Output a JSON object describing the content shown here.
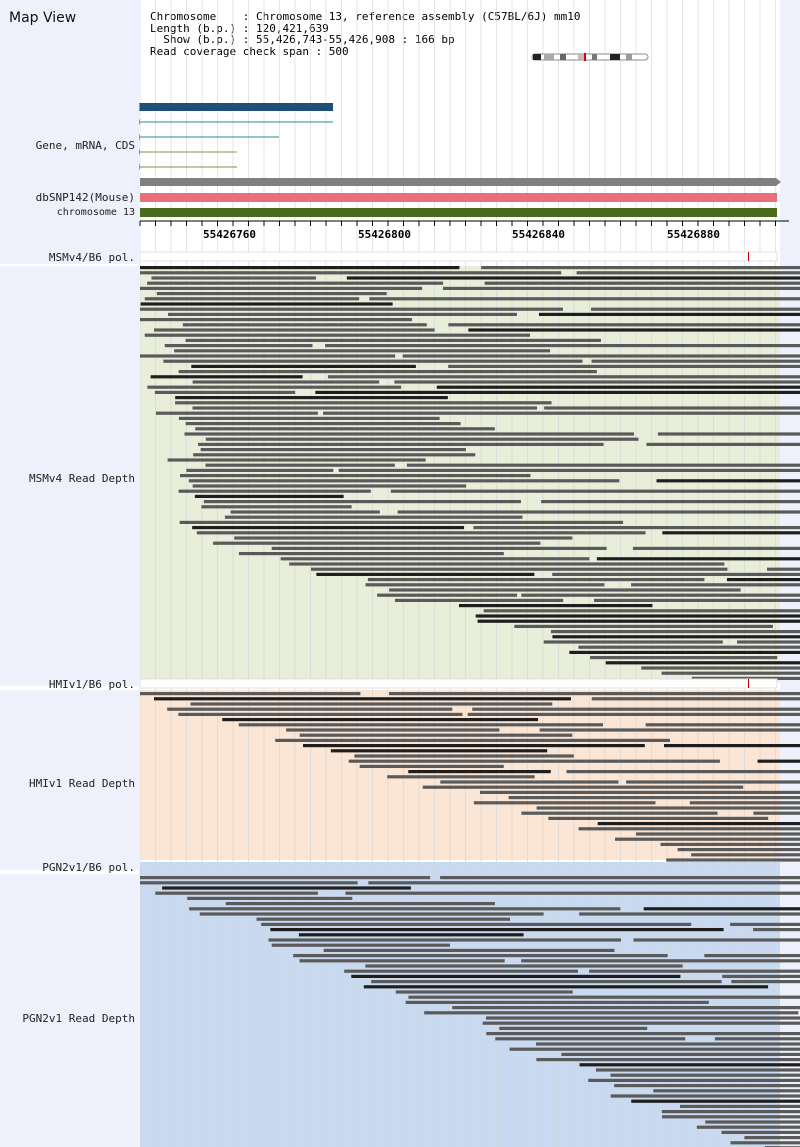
{
  "map_view": {
    "title": "Map View",
    "info": {
      "chromosome": "Chromosome    : Chromosome 13, reference assembly (C57BL/6J) mm10",
      "length": "Length (b.p.) : 120,421,639",
      "show": "  Show (b.p.) : 55,426,743-55,426,908 : 166 bp",
      "span": "Read coverage check span : 500"
    }
  },
  "tracks": {
    "gene": "Gene, mRNA, CDS",
    "dbsnp": "dbSNP142(Mouse)",
    "chromosome": "chromosome 13",
    "msm_pol": "MSMv4/B6 pol.",
    "msm_depth": "MSMv4 Read Depth",
    "hmi_pol": "HMIv1/B6 pol.",
    "hmi_depth": "HMIv1 Read Depth",
    "pgn_pol": "PGN2v1/B6 pol.",
    "pgn_depth": "PGN2v1 Read Depth"
  },
  "axis": {
    "ticks": [
      "55426760",
      "55426800",
      "55426840",
      "55426880"
    ]
  },
  "colors": {
    "gene_bar": "#1f4e79",
    "gene_line": "#2a8a9a",
    "cds_line": "#8c8c3a",
    "dbsnp_gray": "#808080",
    "dbsnp_pink": "#e8707a",
    "chromosome_green": "#4a6a1e",
    "msm_bg": "#e9eedb",
    "hmi_bg": "#fbe5d4",
    "pgn_bg": "#c9d9ef",
    "read": "#5a5a5a",
    "read_dark": "#1e1e1e",
    "snp_mark": "#c00000"
  }
}
